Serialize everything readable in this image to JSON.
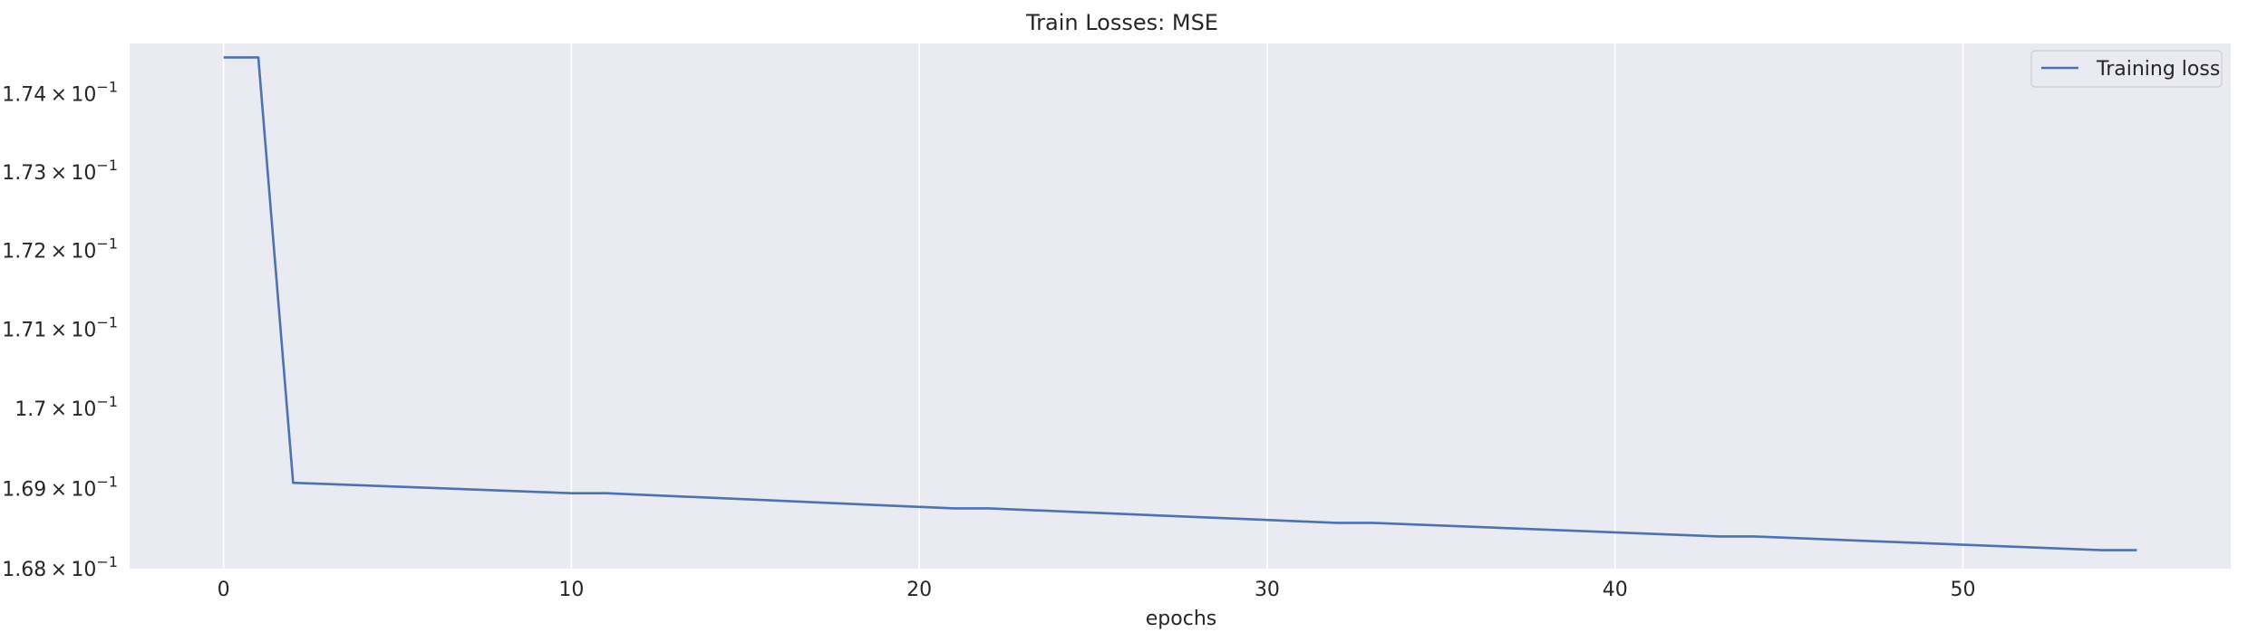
{
  "chart_data": {
    "type": "line",
    "title": "Train Losses:  MSE",
    "xlabel": "epochs",
    "ylabel": "",
    "yscale": "log",
    "grid": "vertical",
    "legend_position": "top-right",
    "xlim": [
      -2.7,
      57.7
    ],
    "ylim": [
      0.168,
      0.17465
    ],
    "x_ticks": [
      0,
      10,
      20,
      30,
      40,
      50
    ],
    "y_ticks": [
      {
        "value": 0.168,
        "mantissa": "1.68",
        "base": "10",
        "exp": "−1"
      },
      {
        "value": 0.169,
        "mantissa": "1.69",
        "base": "10",
        "exp": "−1"
      },
      {
        "value": 0.17,
        "mantissa": "1.7",
        "base": "10",
        "exp": "−1"
      },
      {
        "value": 0.171,
        "mantissa": "1.71",
        "base": "10",
        "exp": "−1"
      },
      {
        "value": 0.172,
        "mantissa": "1.72",
        "base": "10",
        "exp": "−1"
      },
      {
        "value": 0.173,
        "mantissa": "1.73",
        "base": "10",
        "exp": "−1"
      },
      {
        "value": 0.174,
        "mantissa": "1.74",
        "base": "10",
        "exp": "−1"
      }
    ],
    "series": [
      {
        "name": "Training loss",
        "color": "#4c72b0",
        "x": [
          0,
          1,
          2,
          10,
          11,
          21,
          22,
          32,
          33,
          43,
          44,
          54,
          55
        ],
        "y": [
          0.17447,
          0.17447,
          0.16907,
          0.16894,
          0.16894,
          0.16875,
          0.16875,
          0.16857,
          0.16857,
          0.1684,
          0.1684,
          0.16823,
          0.16823
        ]
      }
    ],
    "colors": {
      "plot_background": "#eaeaf2",
      "grid": "#ffffff",
      "text": "#262626"
    }
  }
}
